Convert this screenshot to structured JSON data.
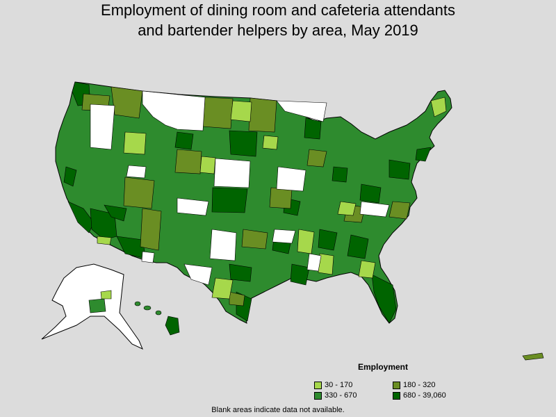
{
  "title": {
    "line1": "Employment of dining room and cafeteria attendants",
    "line2": "and bartender helpers by area, May 2019"
  },
  "legend": {
    "title": "Employment",
    "items": [
      {
        "label": "30 - 170",
        "color": "#a6d84b"
      },
      {
        "label": "180 - 320",
        "color": "#6a8e23"
      },
      {
        "label": "330 - 670",
        "color": "#2e8b2e"
      },
      {
        "label": "680 - 39,060",
        "color": "#006400"
      }
    ]
  },
  "footnote": "Blank areas indicate data not available."
}
